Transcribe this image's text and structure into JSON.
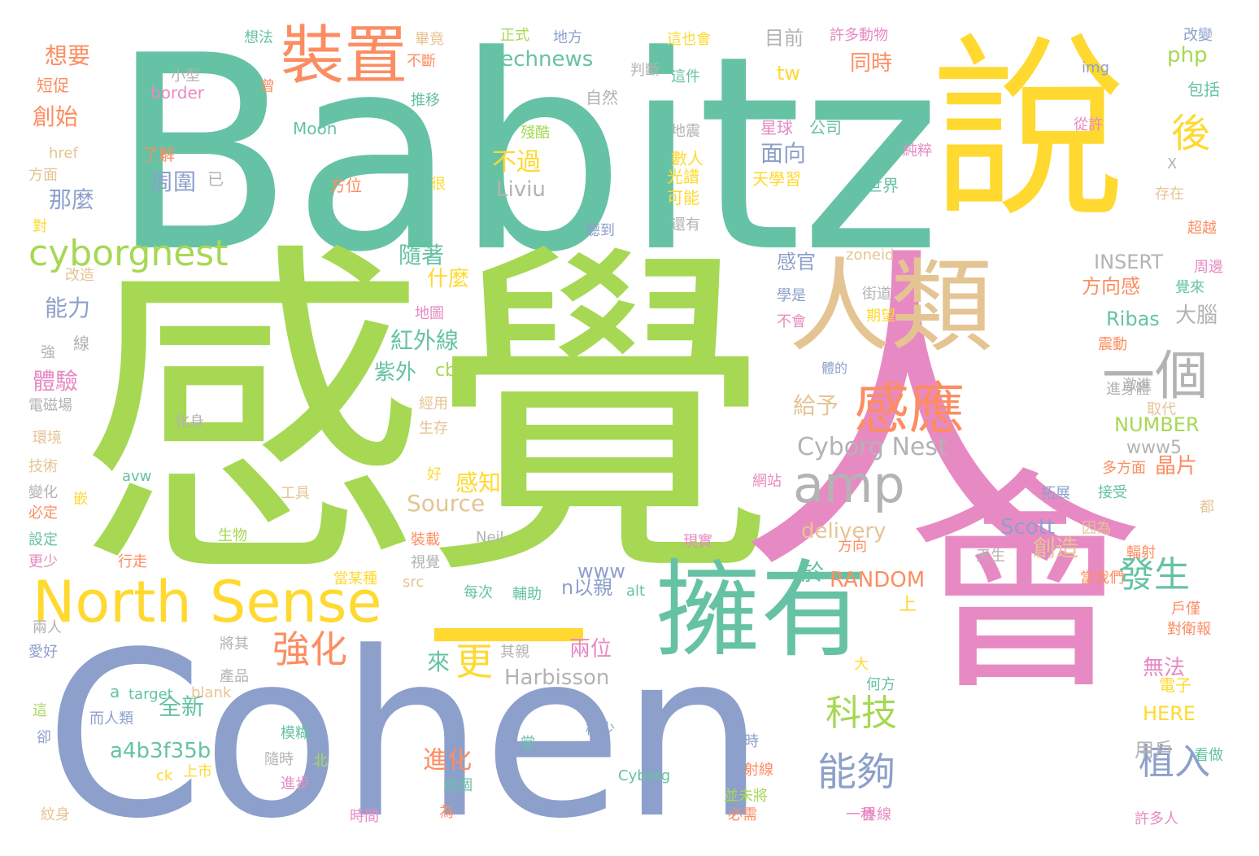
{
  "palette": {
    "green": "#66c2a5",
    "orange": "#fc8d62",
    "blue": "#8da0cb",
    "pink": "#e78ac3",
    "lime": "#a6d854",
    "yellow": "#ffd92f",
    "tan": "#e5c494",
    "gray": "#b3b3b3"
  },
  "words": [
    {
      "t": "Babitz",
      "c": "green"
    },
    {
      "t": "感覺",
      "c": "lime"
    },
    {
      "t": "人",
      "c": "pink"
    },
    {
      "t": "說",
      "c": "yellow"
    },
    {
      "t": "Cohen",
      "c": "blue"
    },
    {
      "t": "會",
      "c": "pink"
    },
    {
      "t": "一",
      "c": "yellow"
    },
    {
      "t": "擁有",
      "c": "green"
    },
    {
      "t": "人類",
      "c": "tan"
    },
    {
      "t": "North Sense",
      "c": "yellow"
    },
    {
      "t": "裝置",
      "c": "orange"
    },
    {
      "t": "一個",
      "c": "gray"
    },
    {
      "t": "amp",
      "c": "gray"
    },
    {
      "t": "感應",
      "c": "orange"
    },
    {
      "t": "cyborgnest",
      "c": "lime"
    },
    {
      "t": "發生",
      "c": "green"
    },
    {
      "t": "強化",
      "c": "orange"
    },
    {
      "t": "科技",
      "c": "lime"
    },
    {
      "t": "能夠",
      "c": "blue"
    },
    {
      "t": "植入",
      "c": "blue"
    },
    {
      "t": "更",
      "c": "yellow"
    },
    {
      "t": "後",
      "c": "yellow"
    },
    {
      "t": "Cyborg Nest",
      "c": "gray"
    },
    {
      "t": "technews",
      "c": "green"
    },
    {
      "t": "全新",
      "c": "green"
    },
    {
      "t": "a4b3f35b",
      "c": "green"
    },
    {
      "t": "進化",
      "c": "orange"
    },
    {
      "t": "想要",
      "c": "orange"
    },
    {
      "t": "創始",
      "c": "orange"
    },
    {
      "t": "目前",
      "c": "gray"
    },
    {
      "t": "同時",
      "c": "orange"
    },
    {
      "t": "php",
      "c": "lime"
    },
    {
      "t": "面向",
      "c": "blue"
    },
    {
      "t": "不過",
      "c": "yellow"
    },
    {
      "t": "Liviu",
      "c": "gray"
    },
    {
      "t": "周圍",
      "c": "blue"
    },
    {
      "t": "那麼",
      "c": "blue"
    },
    {
      "t": "感官",
      "c": "blue"
    },
    {
      "t": "INSERT",
      "c": "gray"
    },
    {
      "t": "方向感",
      "c": "orange"
    },
    {
      "t": "Ribas",
      "c": "green"
    },
    {
      "t": "大腦",
      "c": "gray"
    },
    {
      "t": "隨著",
      "c": "green"
    },
    {
      "t": "什麼",
      "c": "yellow"
    },
    {
      "t": "紅外線",
      "c": "green"
    },
    {
      "t": "紫外",
      "c": "green"
    },
    {
      "t": "cb",
      "c": "lime"
    },
    {
      "t": "給予",
      "c": "tan"
    },
    {
      "t": "能力",
      "c": "blue"
    },
    {
      "t": "體驗",
      "c": "pink"
    },
    {
      "t": "NUMBER",
      "c": "lime"
    },
    {
      "t": "www5",
      "c": "gray"
    },
    {
      "t": "晶片",
      "c": "orange"
    },
    {
      "t": "感知",
      "c": "yellow"
    },
    {
      "t": "Source",
      "c": "tan"
    },
    {
      "t": "delivery",
      "c": "tan"
    },
    {
      "t": "Scott",
      "c": "blue"
    },
    {
      "t": "創造",
      "c": "tan"
    },
    {
      "t": "RANDOM",
      "c": "orange"
    },
    {
      "t": "於",
      "c": "green"
    },
    {
      "t": "www",
      "c": "blue"
    },
    {
      "t": "n以親",
      "c": "blue"
    },
    {
      "t": "Harbisson",
      "c": "gray"
    },
    {
      "t": "兩位",
      "c": "pink"
    },
    {
      "t": "來",
      "c": "green"
    },
    {
      "t": "無法",
      "c": "pink"
    },
    {
      "t": "HERE",
      "c": "yellow"
    },
    {
      "t": "用戶",
      "c": "gray"
    },
    {
      "t": "tw",
      "c": "yellow"
    },
    {
      "t": "星球",
      "c": "pink"
    },
    {
      "t": "公司",
      "c": "green"
    },
    {
      "t": "世界",
      "c": "green"
    },
    {
      "t": "數人",
      "c": "yellow"
    },
    {
      "t": "光譜",
      "c": "yellow"
    },
    {
      "t": "天學習",
      "c": "yellow"
    },
    {
      "t": "可能",
      "c": "yellow"
    },
    {
      "t": "Moon",
      "c": "green"
    },
    {
      "t": "border",
      "c": "pink"
    },
    {
      "t": "href",
      "c": "tan"
    },
    {
      "t": "方面",
      "c": "tan"
    },
    {
      "t": "短促",
      "c": "orange"
    },
    {
      "t": "了解",
      "c": "orange"
    },
    {
      "t": "方位",
      "c": "orange"
    },
    {
      "t": "電子",
      "c": "yellow"
    },
    {
      "t": "看做",
      "c": "green"
    },
    {
      "t": "戶僅",
      "c": "orange"
    },
    {
      "t": "對衛報",
      "c": "orange"
    },
    {
      "t": "上",
      "c": "yellow"
    },
    {
      "t": "大",
      "c": "yellow"
    },
    {
      "t": "zoneid",
      "c": "tan"
    },
    {
      "t": "img",
      "c": "blue"
    },
    {
      "t": "改變",
      "c": "blue"
    },
    {
      "t": "包括",
      "c": "green"
    },
    {
      "t": "從許",
      "c": "pink"
    },
    {
      "t": "純粹",
      "c": "pink"
    },
    {
      "t": "許多動物",
      "c": "pink"
    },
    {
      "t": "這也會",
      "c": "yellow"
    },
    {
      "t": "這件",
      "c": "green"
    },
    {
      "t": "地方",
      "c": "blue"
    },
    {
      "t": "正式",
      "c": "lime"
    },
    {
      "t": "想法",
      "c": "green"
    },
    {
      "t": "畢竟",
      "c": "tan"
    },
    {
      "t": "不斷",
      "c": "orange"
    },
    {
      "t": "判斷",
      "c": "gray"
    },
    {
      "t": "曾",
      "c": "orange"
    },
    {
      "t": "推移",
      "c": "green"
    },
    {
      "t": "自然",
      "c": "gray"
    },
    {
      "t": "小型",
      "c": "gray"
    },
    {
      "t": "殘酷",
      "c": "lime"
    },
    {
      "t": "地震",
      "c": "gray"
    },
    {
      "t": "很",
      "c": "yellow"
    },
    {
      "t": "已",
      "c": "gray"
    },
    {
      "t": "聽到",
      "c": "blue"
    },
    {
      "t": "還有",
      "c": "gray"
    },
    {
      "t": "X",
      "c": "gray"
    },
    {
      "t": "存在",
      "c": "tan"
    },
    {
      "t": "超越",
      "c": "orange"
    },
    {
      "t": "周邊",
      "c": "pink"
    },
    {
      "t": "覺來",
      "c": "green"
    },
    {
      "t": "學是",
      "c": "blue"
    },
    {
      "t": "不會",
      "c": "pink"
    },
    {
      "t": "期望",
      "c": "yellow"
    },
    {
      "t": "街道",
      "c": "gray"
    },
    {
      "t": "地圖",
      "c": "pink"
    },
    {
      "t": "體的",
      "c": "blue"
    },
    {
      "t": "激進",
      "c": "gray"
    },
    {
      "t": "取代",
      "c": "tan"
    },
    {
      "t": "進身體",
      "c": "gray"
    },
    {
      "t": "震動",
      "c": "orange"
    },
    {
      "t": "對",
      "c": "yellow"
    },
    {
      "t": "改造",
      "c": "tan"
    },
    {
      "t": "強",
      "c": "gray"
    },
    {
      "t": "線",
      "c": "gray"
    },
    {
      "t": "電磁場",
      "c": "gray"
    },
    {
      "t": "化身",
      "c": "gray"
    },
    {
      "t": "經用",
      "c": "tan"
    },
    {
      "t": "生存",
      "c": "tan"
    },
    {
      "t": "環境",
      "c": "tan"
    },
    {
      "t": "技術",
      "c": "tan"
    },
    {
      "t": "avw",
      "c": "green"
    },
    {
      "t": "變化",
      "c": "gray"
    },
    {
      "t": "必定",
      "c": "orange"
    },
    {
      "t": "嵌",
      "c": "yellow"
    },
    {
      "t": "工具",
      "c": "tan"
    },
    {
      "t": "好",
      "c": "yellow"
    },
    {
      "t": "網站",
      "c": "pink"
    },
    {
      "t": "多方面",
      "c": "orange"
    },
    {
      "t": "接受",
      "c": "green"
    },
    {
      "t": "拓展",
      "c": "blue"
    },
    {
      "t": "都",
      "c": "tan"
    },
    {
      "t": "設定",
      "c": "green"
    },
    {
      "t": "更少",
      "c": "pink"
    },
    {
      "t": "生物",
      "c": "lime"
    },
    {
      "t": "裝載",
      "c": "orange"
    },
    {
      "t": "視覺",
      "c": "gray"
    },
    {
      "t": "Neil",
      "c": "gray"
    },
    {
      "t": "現實",
      "c": "pink"
    },
    {
      "t": "方向",
      "c": "orange"
    },
    {
      "t": "因為",
      "c": "tan"
    },
    {
      "t": "天生",
      "c": "gray"
    },
    {
      "t": "輻射",
      "c": "orange"
    },
    {
      "t": "當我們",
      "c": "orange"
    },
    {
      "t": "行走",
      "c": "orange"
    },
    {
      "t": "當某種",
      "c": "yellow"
    },
    {
      "t": "src",
      "c": "tan"
    },
    {
      "t": "每次",
      "c": "green"
    },
    {
      "t": "輔助",
      "c": "green"
    },
    {
      "t": "alt",
      "c": "green"
    },
    {
      "t": "兩人",
      "c": "gray"
    },
    {
      "t": "愛好",
      "c": "blue"
    },
    {
      "t": "將其",
      "c": "gray"
    },
    {
      "t": "其親",
      "c": "gray"
    },
    {
      "t": "產品",
      "c": "gray"
    },
    {
      "t": "a",
      "c": "green"
    },
    {
      "t": "target",
      "c": "green"
    },
    {
      "t": "blank",
      "c": "tan"
    },
    {
      "t": "何方",
      "c": "green"
    },
    {
      "t": "這",
      "c": "lime"
    },
    {
      "t": "而人類",
      "c": "blue"
    },
    {
      "t": "卻",
      "c": "blue"
    },
    {
      "t": "模糊",
      "c": "green"
    },
    {
      "t": "當",
      "c": "green"
    },
    {
      "t": "極少",
      "c": "blue"
    },
    {
      "t": "時",
      "c": "blue"
    },
    {
      "t": "隨時",
      "c": "gray"
    },
    {
      "t": "北",
      "c": "lime"
    },
    {
      "t": "ck",
      "c": "yellow"
    },
    {
      "t": "上市",
      "c": "yellow"
    },
    {
      "t": "進步",
      "c": "pink"
    },
    {
      "t": "Cyborg",
      "c": "green"
    },
    {
      "t": "這個",
      "c": "green"
    },
    {
      "t": "射線",
      "c": "orange"
    },
    {
      "t": "並未將",
      "c": "lime"
    },
    {
      "t": "必需",
      "c": "orange"
    },
    {
      "t": "一種",
      "c": "pink"
    },
    {
      "t": "界線",
      "c": "pink"
    },
    {
      "t": "許多人",
      "c": "pink"
    },
    {
      "t": "紋身",
      "c": "tan"
    },
    {
      "t": "時間",
      "c": "pink"
    },
    {
      "t": "為",
      "c": "orange"
    }
  ]
}
